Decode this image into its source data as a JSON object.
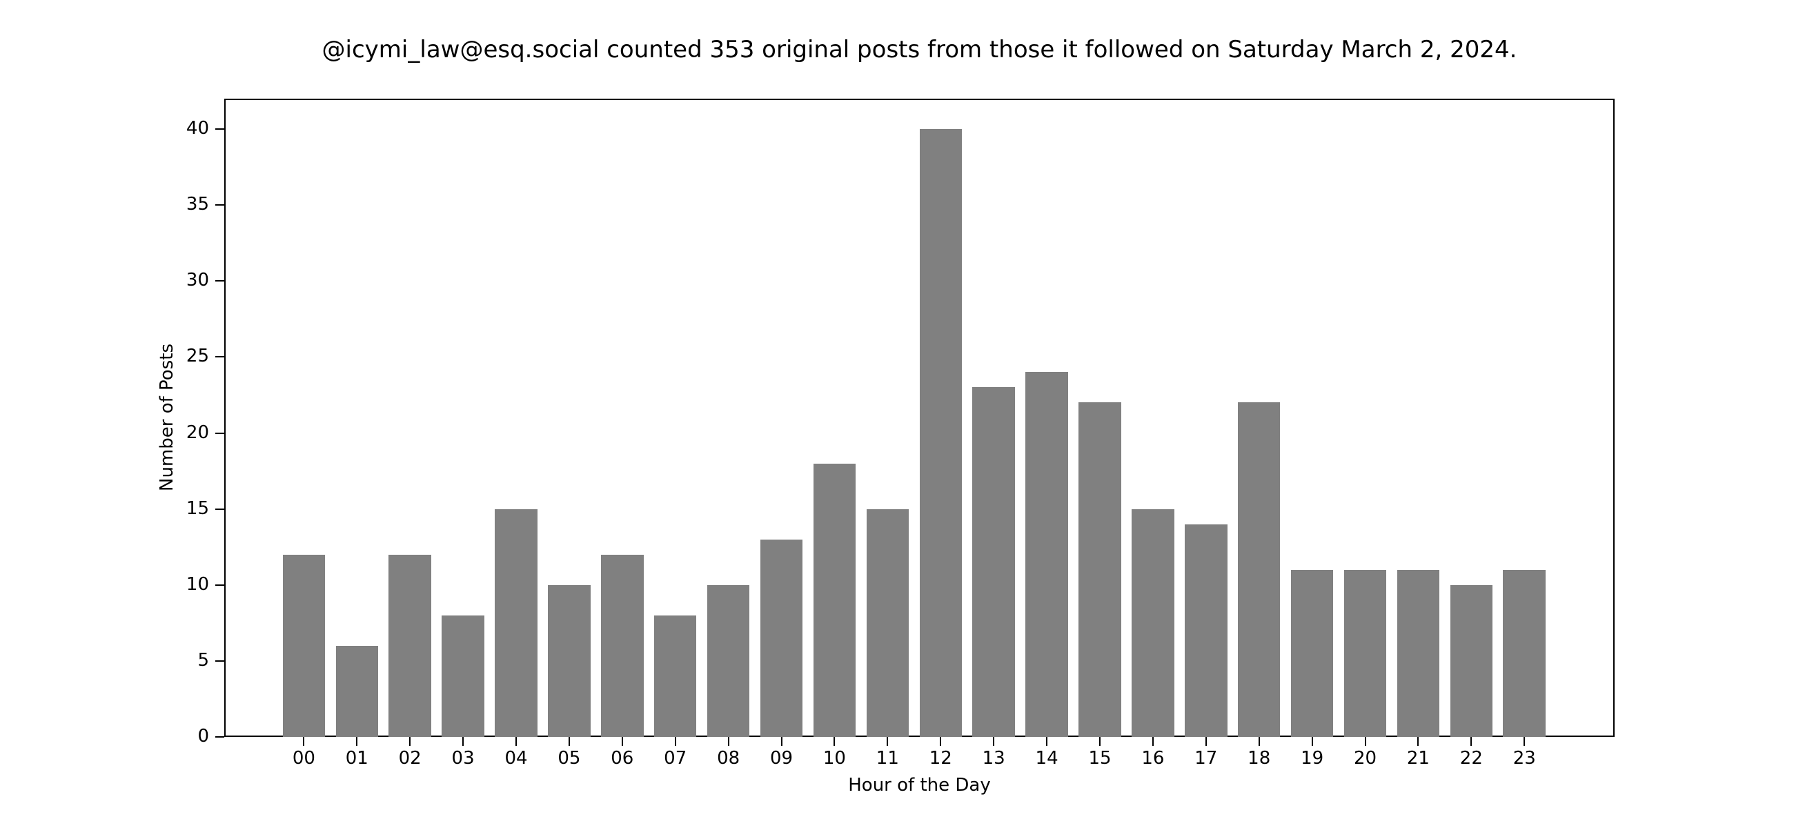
{
  "title": "@icymi_law@esq.social counted 353 original posts from those it followed on Saturday March 2, 2024.",
  "colors": {
    "bar": "#808080",
    "axes": "#000000",
    "background": "#ffffff"
  },
  "chart_data": {
    "type": "bar",
    "title": "@icymi_law@esq.social counted 353 original posts from those it followed on Saturday March 2, 2024.",
    "xlabel": "Hour of the Day",
    "ylabel": "Number of Posts",
    "categories": [
      "00",
      "01",
      "02",
      "03",
      "04",
      "05",
      "06",
      "07",
      "08",
      "09",
      "10",
      "11",
      "12",
      "13",
      "14",
      "15",
      "16",
      "17",
      "18",
      "19",
      "20",
      "21",
      "22",
      "23"
    ],
    "values": [
      12,
      6,
      12,
      8,
      15,
      10,
      12,
      8,
      10,
      13,
      18,
      15,
      40,
      23,
      24,
      22,
      15,
      14,
      22,
      11,
      11,
      11,
      10,
      11
    ],
    "yticks": [
      0,
      5,
      10,
      15,
      20,
      25,
      30,
      35,
      40
    ],
    "ylim": [
      0,
      42
    ],
    "xlim": [
      -1.5,
      24.7
    ],
    "grid": false,
    "legend": null,
    "bar_color": "#808080",
    "total": 353
  }
}
